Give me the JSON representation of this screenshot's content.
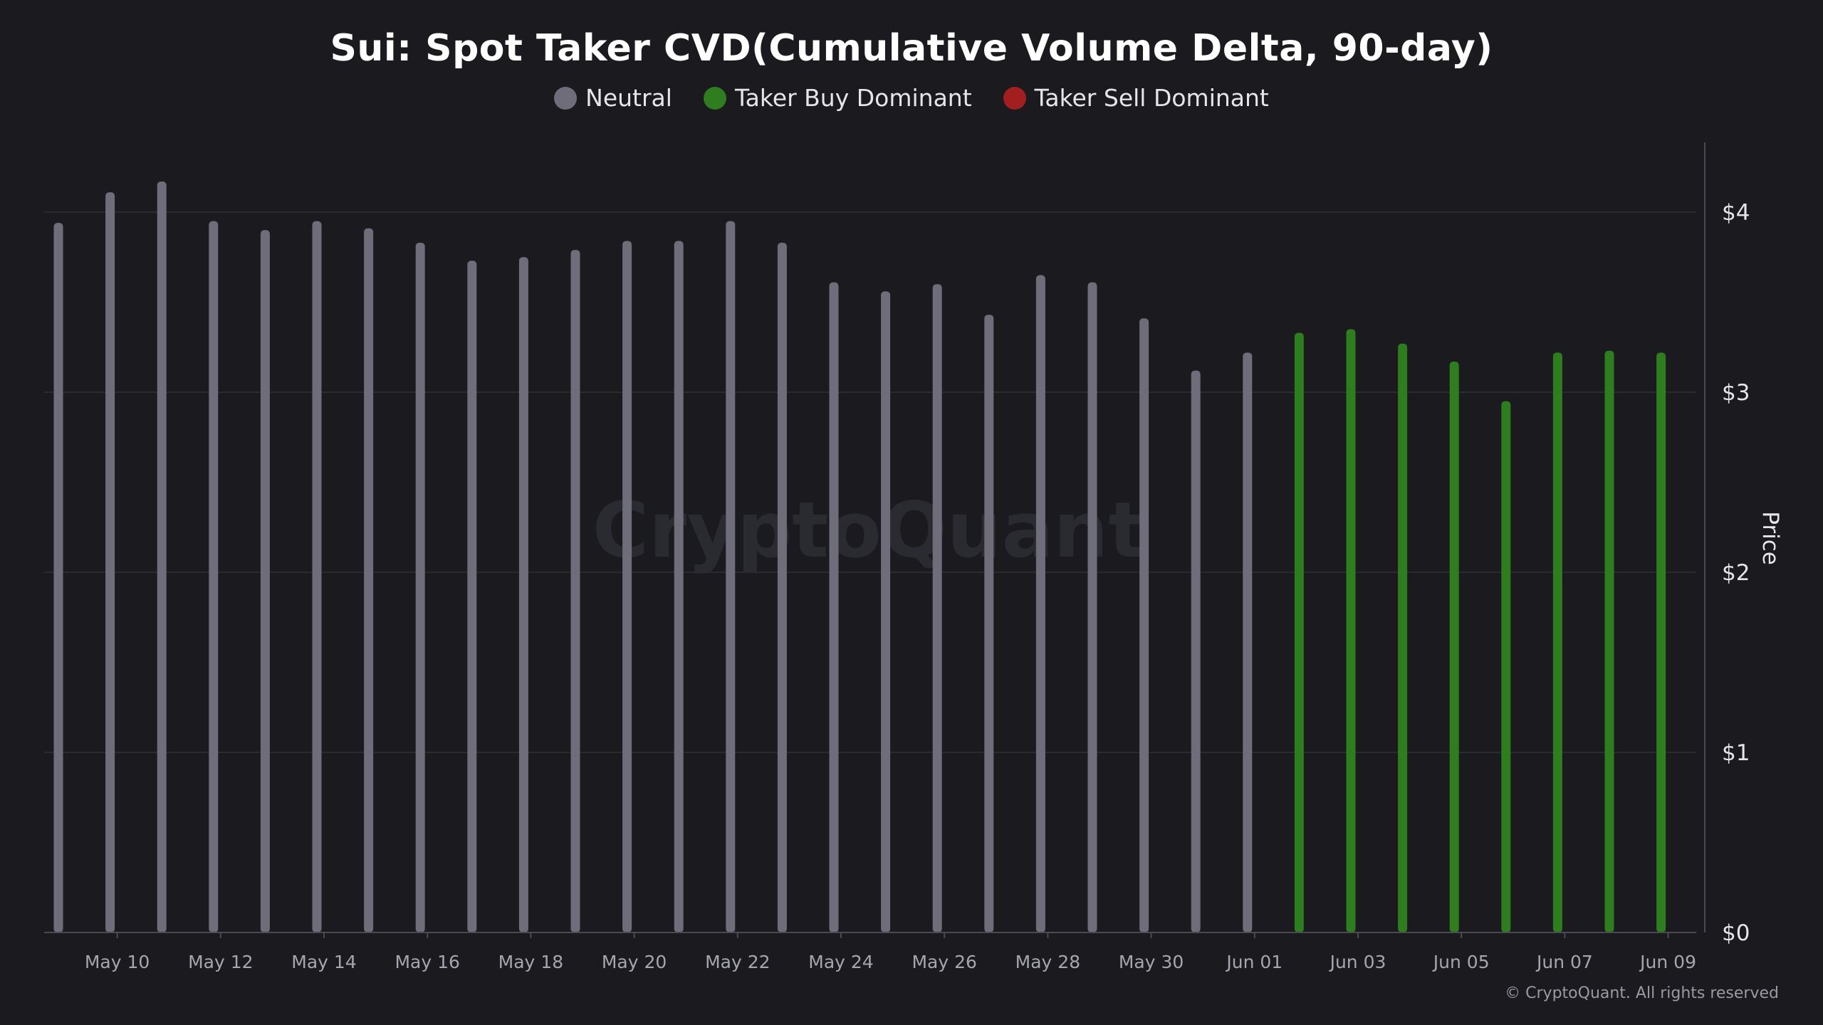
{
  "chart_data": {
    "type": "bar",
    "title": "Sui: Spot Taker CVD(Cumulative Volume Delta, 90-day)",
    "ylabel": "Price",
    "xlabel": "",
    "ylim": [
      0,
      4.4
    ],
    "y_ticks": [
      0,
      1,
      2,
      3,
      4
    ],
    "y_tick_labels": [
      "$0",
      "$1",
      "$2",
      "$3",
      "$4"
    ],
    "x_tick_labels": [
      "May 10",
      "May 12",
      "May 14",
      "May 16",
      "May 18",
      "May 20",
      "May 22",
      "May 24",
      "May 26",
      "May 28",
      "May 30",
      "Jun 01",
      "Jun 03",
      "Jun 05",
      "Jun 07",
      "Jun 09"
    ],
    "legend": [
      {
        "name": "Neutral",
        "color": "#6f6d7a"
      },
      {
        "name": "Taker Buy Dominant",
        "color": "#2e7d1e"
      },
      {
        "name": "Taker Sell Dominant",
        "color": "#a31f1f"
      }
    ],
    "series": [
      {
        "name": "Price",
        "points": [
          {
            "date": "May 09",
            "value": 3.94,
            "regime": "Neutral"
          },
          {
            "date": "May 10",
            "value": 4.11,
            "regime": "Neutral"
          },
          {
            "date": "May 11",
            "value": 4.17,
            "regime": "Neutral"
          },
          {
            "date": "May 12",
            "value": 3.95,
            "regime": "Neutral"
          },
          {
            "date": "May 13",
            "value": 3.9,
            "regime": "Neutral"
          },
          {
            "date": "May 14",
            "value": 3.95,
            "regime": "Neutral"
          },
          {
            "date": "May 15",
            "value": 3.91,
            "regime": "Neutral"
          },
          {
            "date": "May 16",
            "value": 3.83,
            "regime": "Neutral"
          },
          {
            "date": "May 17",
            "value": 3.73,
            "regime": "Neutral"
          },
          {
            "date": "May 18",
            "value": 3.75,
            "regime": "Neutral"
          },
          {
            "date": "May 19",
            "value": 3.79,
            "regime": "Neutral"
          },
          {
            "date": "May 20",
            "value": 3.84,
            "regime": "Neutral"
          },
          {
            "date": "May 21",
            "value": 3.84,
            "regime": "Neutral"
          },
          {
            "date": "May 22",
            "value": 3.95,
            "regime": "Neutral"
          },
          {
            "date": "May 23",
            "value": 3.83,
            "regime": "Neutral"
          },
          {
            "date": "May 24",
            "value": 3.61,
            "regime": "Neutral"
          },
          {
            "date": "May 25",
            "value": 3.56,
            "regime": "Neutral"
          },
          {
            "date": "May 26",
            "value": 3.6,
            "regime": "Neutral"
          },
          {
            "date": "May 27",
            "value": 3.43,
            "regime": "Neutral"
          },
          {
            "date": "May 28",
            "value": 3.65,
            "regime": "Neutral"
          },
          {
            "date": "May 29",
            "value": 3.61,
            "regime": "Neutral"
          },
          {
            "date": "May 30",
            "value": 3.41,
            "regime": "Neutral"
          },
          {
            "date": "May 31",
            "value": 3.12,
            "regime": "Neutral"
          },
          {
            "date": "Jun 01",
            "value": 3.22,
            "regime": "Neutral"
          },
          {
            "date": "Jun 02",
            "value": 3.33,
            "regime": "Taker Buy Dominant"
          },
          {
            "date": "Jun 03",
            "value": 3.35,
            "regime": "Taker Buy Dominant"
          },
          {
            "date": "Jun 04",
            "value": 3.27,
            "regime": "Taker Buy Dominant"
          },
          {
            "date": "Jun 05",
            "value": 3.17,
            "regime": "Taker Buy Dominant"
          },
          {
            "date": "Jun 06",
            "value": 2.95,
            "regime": "Taker Buy Dominant"
          },
          {
            "date": "Jun 07",
            "value": 3.22,
            "regime": "Taker Buy Dominant"
          },
          {
            "date": "Jun 08",
            "value": 3.23,
            "regime": "Taker Buy Dominant"
          },
          {
            "date": "Jun 09",
            "value": 3.22,
            "regime": "Taker Buy Dominant"
          }
        ]
      }
    ],
    "grid": true
  },
  "watermark": "CryptoQuant",
  "footer": "© CryptoQuant. All rights reserved"
}
